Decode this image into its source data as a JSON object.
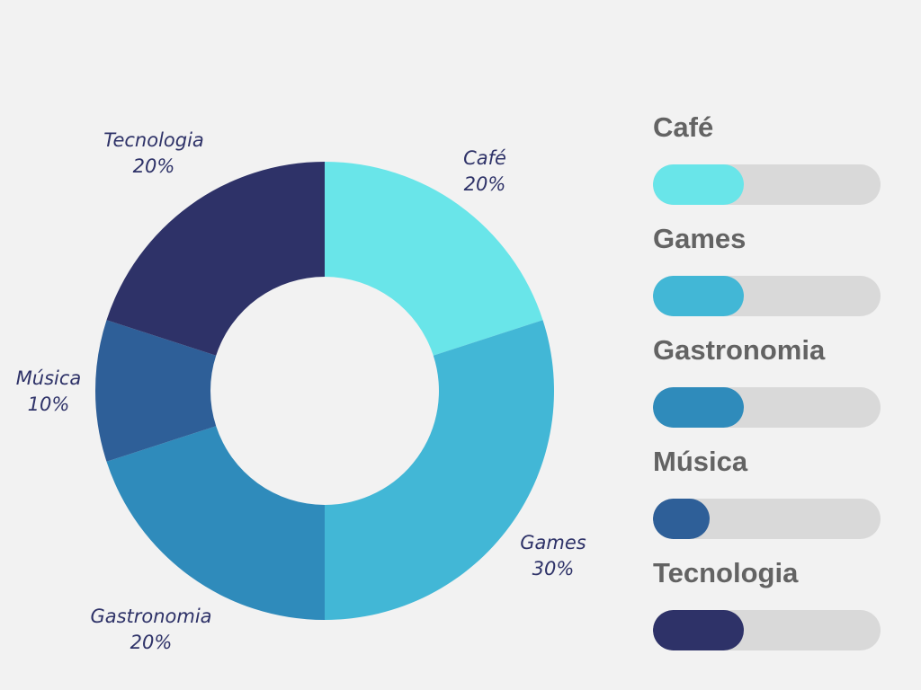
{
  "chart_data": {
    "type": "pie",
    "donut": true,
    "categories": [
      "Café",
      "Games",
      "Gastronomia",
      "Música",
      "Tecnologia"
    ],
    "values": [
      20,
      30,
      20,
      10,
      20
    ],
    "value_labels": [
      "20%",
      "30%",
      "20%",
      "10%",
      "20%"
    ],
    "colors": [
      "#69e5e9",
      "#42b7d6",
      "#2f8bbb",
      "#2e5f98",
      "#2e3268"
    ],
    "legend_placement": "right",
    "title": "",
    "start_angle_deg": 0,
    "direction": "clockwise"
  },
  "legend": {
    "items": [
      {
        "label": "Café",
        "value": 0.4,
        "color": "#69e5e9"
      },
      {
        "label": "Games",
        "value": 0.4,
        "color": "#42b7d6"
      },
      {
        "label": "Gastronomia",
        "value": 0.4,
        "color": "#2f8bbb"
      },
      {
        "label": "Música",
        "value": 0.25,
        "color": "#2e5f98"
      },
      {
        "label": "Tecnologia",
        "value": 0.4,
        "color": "#2e3268"
      }
    ]
  },
  "colors": {
    "background": "#f2f2f2",
    "label_text": "#2e3268",
    "legend_text": "#636363",
    "track": "#d9d9d9"
  }
}
